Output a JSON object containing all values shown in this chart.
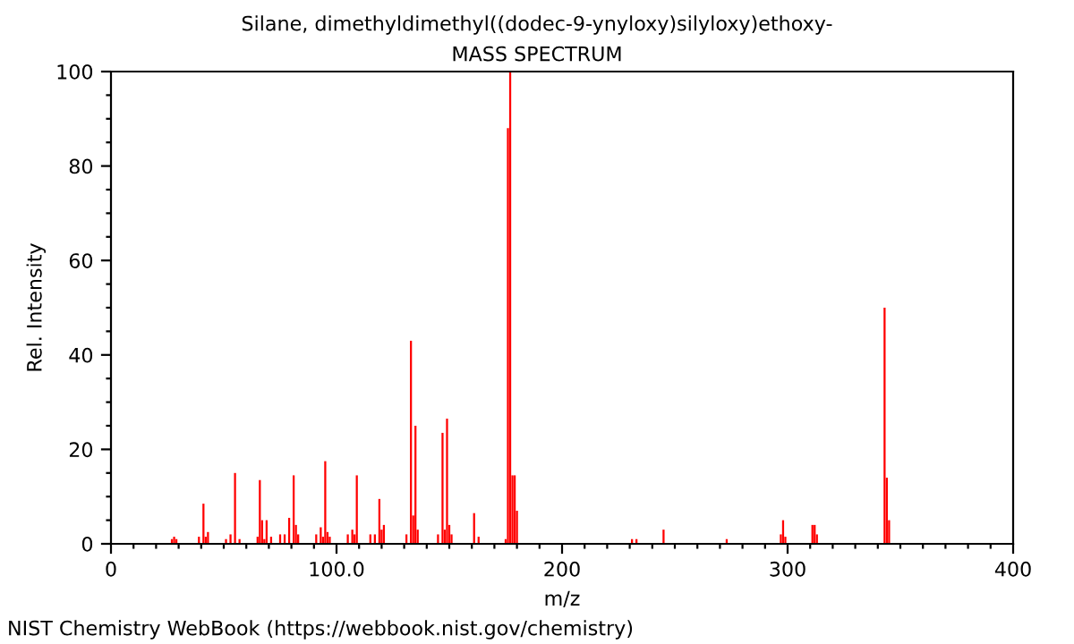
{
  "chart_data": {
    "type": "bar",
    "title": "Silane, dimethyldimethyl((dodec-9-ynyloxy)silyloxy)ethoxy-",
    "subtitle": "MASS SPECTRUM",
    "xlabel": "m/z",
    "ylabel": "Rel. Intensity",
    "annotations": [
      "NIST Chemistry WebBook (https://webbook.nist.gov/chemistry)"
    ],
    "x": [
      27,
      28,
      29,
      39,
      41,
      42,
      43,
      51,
      53,
      55,
      57,
      65,
      66,
      67,
      68,
      69,
      71,
      75,
      77,
      79,
      81,
      82,
      83,
      91,
      93,
      94,
      95,
      96,
      97,
      105,
      107,
      108,
      109,
      115,
      117,
      119,
      120,
      121,
      131,
      133,
      134,
      135,
      136,
      145,
      147,
      148,
      149,
      150,
      151,
      161,
      163,
      175,
      176,
      177,
      178,
      179,
      180,
      231,
      233,
      245,
      273,
      297,
      298,
      299,
      311,
      312,
      313,
      343,
      344,
      345
    ],
    "values": [
      1,
      1.5,
      1,
      1.5,
      8.5,
      1.5,
      2.5,
      1,
      2,
      15,
      1,
      1.5,
      13.5,
      5,
      1,
      5,
      1.5,
      2,
      2,
      5.5,
      14.5,
      4,
      2,
      2,
      3.5,
      1.5,
      17.5,
      2.5,
      1.5,
      2,
      3,
      2,
      14.5,
      2,
      2,
      9.5,
      3,
      4,
      2,
      43,
      6,
      25,
      3,
      2,
      23.5,
      3,
      26.5,
      4,
      2,
      6.5,
      1.5,
      1,
      88,
      100,
      14.5,
      14.5,
      7,
      1,
      1,
      3,
      1,
      2,
      5,
      1.5,
      4,
      4,
      2,
      50,
      14,
      5
    ],
    "color": "#ff0000",
    "xlim": [
      0,
      400
    ],
    "ylim": [
      0,
      100
    ],
    "xticks": [
      0,
      {
        "value": 10,
        "label": null
      },
      {
        "value": 20,
        "label": null
      },
      {
        "value": 30,
        "label": null
      },
      {
        "value": 40,
        "label": null
      },
      {
        "value": 50,
        "label": null
      },
      {
        "value": 60,
        "label": null
      },
      {
        "value": 70,
        "label": null
      },
      {
        "value": 80,
        "label": null
      },
      {
        "value": 90,
        "label": null
      },
      {
        "value": 100,
        "label": "100.0"
      },
      {
        "value": 110,
        "label": null
      },
      {
        "value": 120,
        "label": null
      },
      {
        "value": 130,
        "label": null
      },
      {
        "value": 140,
        "label": null
      },
      {
        "value": 150,
        "label": null
      },
      {
        "value": 160,
        "label": null
      },
      {
        "value": 170,
        "label": null
      },
      {
        "value": 180,
        "label": null
      },
      {
        "value": 190,
        "label": null
      },
      200,
      {
        "value": 210,
        "label": null
      },
      {
        "value": 220,
        "label": null
      },
      {
        "value": 230,
        "label": null
      },
      {
        "value": 240,
        "label": null
      },
      {
        "value": 250,
        "label": null
      },
      {
        "value": 260,
        "label": null
      },
      {
        "value": 270,
        "label": null
      },
      {
        "value": 280,
        "label": null
      },
      {
        "value": 290,
        "label": null
      },
      300,
      {
        "value": 310,
        "label": null
      },
      {
        "value": 320,
        "label": null
      },
      {
        "value": 330,
        "label": null
      },
      {
        "value": 340,
        "label": null
      },
      {
        "value": 350,
        "label": null
      },
      {
        "value": 360,
        "label": null
      },
      {
        "value": 370,
        "label": null
      },
      {
        "value": 380,
        "label": null
      },
      {
        "value": 390,
        "label": null
      },
      400
    ],
    "yticks": [
      0,
      {
        "value": 5,
        "label": null
      },
      {
        "value": 10,
        "label": null
      },
      {
        "value": 15,
        "label": null
      },
      20,
      {
        "value": 25,
        "label": null
      },
      {
        "value": 30,
        "label": null
      },
      {
        "value": 35,
        "label": null
      },
      40,
      {
        "value": 45,
        "label": null
      },
      {
        "value": 50,
        "label": null
      },
      {
        "value": 55,
        "label": null
      },
      60,
      {
        "value": 65,
        "label": null
      },
      {
        "value": 70,
        "label": null
      },
      {
        "value": 75,
        "label": null
      },
      80,
      {
        "value": 85,
        "label": null
      },
      {
        "value": 90,
        "label": null
      },
      {
        "value": 95,
        "label": null
      },
      100
    ],
    "grid": false,
    "legend": false
  }
}
